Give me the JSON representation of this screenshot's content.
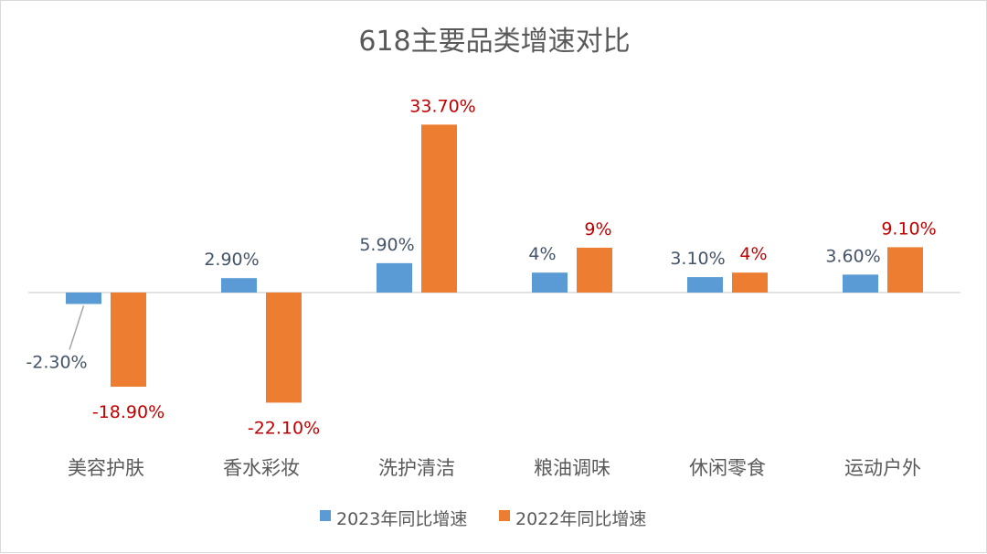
{
  "chart_data": {
    "type": "bar",
    "title": "618主要品类增速对比",
    "categories": [
      "美容护肤",
      "香水彩妆",
      "洗护清洁",
      "粮油调味",
      "休闲零食",
      "运动户外"
    ],
    "series": [
      {
        "name": "2023年同比增速",
        "color": "#5b9bd5",
        "label_color": "#44546a",
        "values": [
          -2.3,
          2.9,
          5.9,
          4,
          3.1,
          3.6
        ],
        "labels": [
          "-2.30%",
          "2.90%",
          "5.90%",
          "4%",
          "3.10%",
          "3.60%"
        ]
      },
      {
        "name": "2022年同比增速",
        "color": "#ed7d31",
        "label_color": "#c00000",
        "values": [
          -18.9,
          -22.1,
          33.7,
          9,
          4,
          9.1
        ],
        "labels": [
          "-18.90%",
          "-22.10%",
          "33.70%",
          "9%",
          "4%",
          "9.10%"
        ]
      }
    ],
    "ylim": [
      -24,
      36
    ],
    "legend": "bottom",
    "grid": false
  }
}
